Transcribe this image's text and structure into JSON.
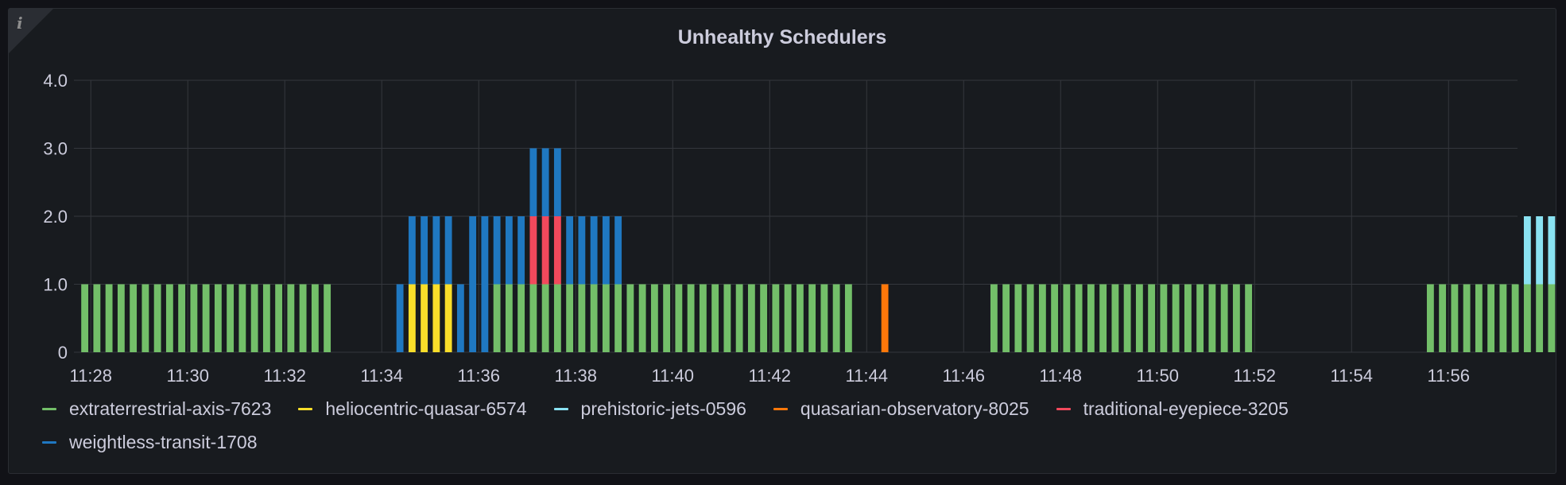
{
  "panel": {
    "title": "Unhealthy Schedulers",
    "info_icon": "info-icon"
  },
  "chart_data": {
    "type": "bar",
    "stacked": true,
    "title": "Unhealthy Schedulers",
    "xlabel": "",
    "ylabel": "",
    "ylim": [
      0,
      4
    ],
    "y_ticks": [
      "0",
      "1.0",
      "2.0",
      "3.0",
      "4.0"
    ],
    "x_ticks": [
      "11:28",
      "11:30",
      "11:32",
      "11:34",
      "11:36",
      "11:38",
      "11:40",
      "11:42",
      "11:44",
      "11:46",
      "11:48",
      "11:50",
      "11:52",
      "11:54",
      "11:56"
    ],
    "grid": true,
    "legend_position": "bottom",
    "x_unit": "minutes",
    "bucket_seconds": 15,
    "x_start": "11:27:45",
    "series": [
      {
        "name": "extraterrestrial-axis-7623",
        "color": "#73bf69",
        "buckets": [
          [
            0,
            20,
            1
          ],
          [
            34,
            42,
            1
          ],
          [
            43,
            44,
            1
          ],
          [
            45,
            63,
            1
          ],
          [
            75,
            96,
            1
          ],
          [
            111,
            124,
            1
          ]
        ]
      },
      {
        "name": "heliocentric-quasar-6574",
        "color": "#fade2a",
        "buckets": [
          [
            27,
            30,
            1
          ]
        ]
      },
      {
        "name": "prehistoric-jets-0596",
        "color": "#8ae2f2",
        "buckets": [
          [
            119,
            121,
            1
          ]
        ]
      },
      {
        "name": "quasarian-observatory-8025",
        "color": "#ff780a",
        "buckets": [
          [
            66,
            66,
            1
          ]
        ]
      },
      {
        "name": "traditional-eyepiece-3205",
        "color": "#f2495c",
        "buckets": [
          [
            37,
            39,
            1
          ]
        ]
      },
      {
        "name": "weightless-transit-1708",
        "color": "#1f78c1",
        "buckets": [
          [
            26,
            26,
            1
          ],
          [
            27,
            30,
            1
          ],
          [
            31,
            31,
            1
          ],
          [
            32,
            33,
            2
          ],
          [
            34,
            36,
            1
          ],
          [
            37,
            39,
            1
          ],
          [
            40,
            44,
            1
          ]
        ]
      }
    ]
  },
  "legend": [
    {
      "label": "extraterrestrial-axis-7623",
      "color": "#73bf69"
    },
    {
      "label": "heliocentric-quasar-6574",
      "color": "#fade2a"
    },
    {
      "label": "prehistoric-jets-0596",
      "color": "#8ae2f2"
    },
    {
      "label": "quasarian-observatory-8025",
      "color": "#ff780a"
    },
    {
      "label": "traditional-eyepiece-3205",
      "color": "#f2495c"
    },
    {
      "label": "weightless-transit-1708",
      "color": "#1f78c1"
    }
  ]
}
